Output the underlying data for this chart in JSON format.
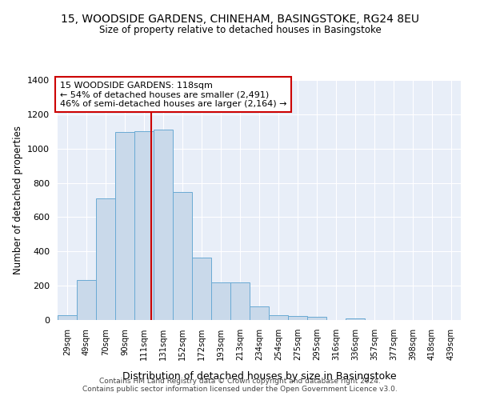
{
  "title1": "15, WOODSIDE GARDENS, CHINEHAM, BASINGSTOKE, RG24 8EU",
  "title2": "Size of property relative to detached houses in Basingstoke",
  "xlabel": "Distribution of detached houses by size in Basingstoke",
  "ylabel": "Number of detached properties",
  "footer1": "Contains HM Land Registry data © Crown copyright and database right 2024.",
  "footer2": "Contains public sector information licensed under the Open Government Licence v3.0.",
  "bar_labels": [
    "29sqm",
    "49sqm",
    "70sqm",
    "90sqm",
    "111sqm",
    "131sqm",
    "152sqm",
    "172sqm",
    "193sqm",
    "213sqm",
    "234sqm",
    "254sqm",
    "275sqm",
    "295sqm",
    "316sqm",
    "336sqm",
    "357sqm",
    "377sqm",
    "398sqm",
    "418sqm",
    "439sqm"
  ],
  "bar_values": [
    30,
    235,
    710,
    1095,
    1100,
    1110,
    745,
    365,
    220,
    220,
    80,
    30,
    25,
    20,
    0,
    10,
    0,
    0,
    0,
    0,
    0
  ],
  "bar_color": "#c9d9ea",
  "bar_edge_color": "#6aaad4",
  "property_label": "15 WOODSIDE GARDENS: 118sqm",
  "annotation_line1": "← 54% of detached houses are smaller (2,491)",
  "annotation_line2": "46% of semi-detached houses are larger (2,164) →",
  "vline_color": "#cc0000",
  "annotation_box_edge_color": "#cc0000",
  "ylim": [
    0,
    1400
  ],
  "yticks": [
    0,
    200,
    400,
    600,
    800,
    1000,
    1200,
    1400
  ],
  "bin_width": 21,
  "vline_x": 121
}
